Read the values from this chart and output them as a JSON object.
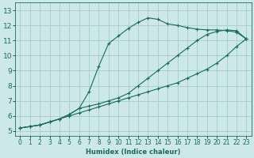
{
  "xlabel": "Humidex (Indice chaleur)",
  "ylabel": "",
  "bg_color": "#cce8e8",
  "grid_color": "#aad0d0",
  "line_color": "#1a6b5a",
  "x_ticks": [
    0,
    1,
    2,
    3,
    4,
    5,
    6,
    7,
    8,
    9,
    10,
    11,
    12,
    13,
    14,
    15,
    16,
    17,
    18,
    19,
    20,
    21,
    22,
    23
  ],
  "y_ticks": [
    5,
    6,
    7,
    8,
    9,
    10,
    11,
    12,
    13
  ],
  "xlim": [
    -0.5,
    23.5
  ],
  "ylim": [
    4.7,
    13.5
  ],
  "curve1_x": [
    0,
    1,
    2,
    3,
    4,
    5,
    6,
    7,
    8,
    9,
    10,
    11,
    12,
    13,
    14,
    15,
    16,
    17,
    18,
    19,
    20,
    21,
    22,
    23
  ],
  "curve1_y": [
    5.2,
    5.3,
    5.4,
    5.6,
    5.8,
    6.0,
    6.2,
    6.4,
    6.6,
    6.8,
    7.0,
    7.2,
    7.4,
    7.6,
    7.8,
    8.0,
    8.2,
    8.5,
    8.8,
    9.1,
    9.5,
    10.0,
    10.6,
    11.1
  ],
  "curve2_x": [
    0,
    1,
    2,
    3,
    4,
    5,
    6,
    7,
    8,
    9,
    10,
    11,
    12,
    13,
    14,
    15,
    16,
    17,
    18,
    19,
    20,
    21,
    22,
    23
  ],
  "curve2_y": [
    5.2,
    5.3,
    5.4,
    5.6,
    5.8,
    6.1,
    6.5,
    7.6,
    9.3,
    10.8,
    11.3,
    11.8,
    12.2,
    12.5,
    12.4,
    12.1,
    12.0,
    11.85,
    11.75,
    11.7,
    11.7,
    11.65,
    11.55,
    11.1
  ],
  "curve3_x": [
    0,
    1,
    2,
    3,
    4,
    5,
    6,
    7,
    8,
    9,
    10,
    11,
    12,
    13,
    14,
    15,
    16,
    17,
    18,
    19,
    20,
    21,
    22,
    23
  ],
  "curve3_y": [
    5.2,
    5.3,
    5.4,
    5.6,
    5.8,
    6.1,
    6.5,
    6.65,
    6.8,
    7.0,
    7.2,
    7.5,
    8.0,
    8.5,
    9.0,
    9.5,
    10.0,
    10.5,
    11.0,
    11.4,
    11.6,
    11.7,
    11.65,
    11.1
  ]
}
